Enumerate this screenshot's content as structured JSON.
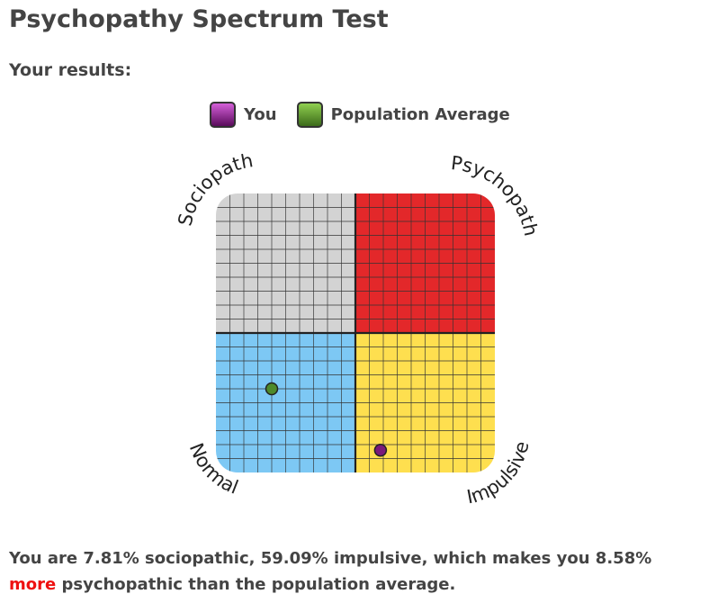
{
  "page": {
    "title": "Psychopathy Spectrum Test",
    "subtitle": "Your results:",
    "result": {
      "before": "You are 7.81% sociopathic, 59.09% impulsive, which makes you 8.58% ",
      "highlight": "more",
      "after": " psychopathic than the population average."
    }
  },
  "legend": [
    {
      "label": "You",
      "color_top": "#d45fd9",
      "color_bottom": "#5a0b5c"
    },
    {
      "label": "Population Average",
      "color_top": "#8fcf4f",
      "color_bottom": "#3c6b1a"
    }
  ],
  "chart_data": {
    "type": "scatter",
    "quadrant_labels": {
      "top_left": "Sociopath",
      "top_right": "Psychopath",
      "bottom_left": "Normal",
      "bottom_right": "Impulsive"
    },
    "quadrant_colors": {
      "top_left": "#d3d3d3",
      "top_right": "#e3282a",
      "bottom_left": "#7dc8f4",
      "bottom_right": "#fedf4f"
    },
    "xlim": [
      -100,
      100
    ],
    "ylim": [
      -100,
      100
    ],
    "grid": true,
    "series": [
      {
        "name": "You",
        "color": "#7a1a7a",
        "points": [
          [
            18,
            -84
          ]
        ]
      },
      {
        "name": "Population Average",
        "color": "#4e8a2a",
        "points": [
          [
            -60,
            -40
          ]
        ]
      }
    ]
  }
}
